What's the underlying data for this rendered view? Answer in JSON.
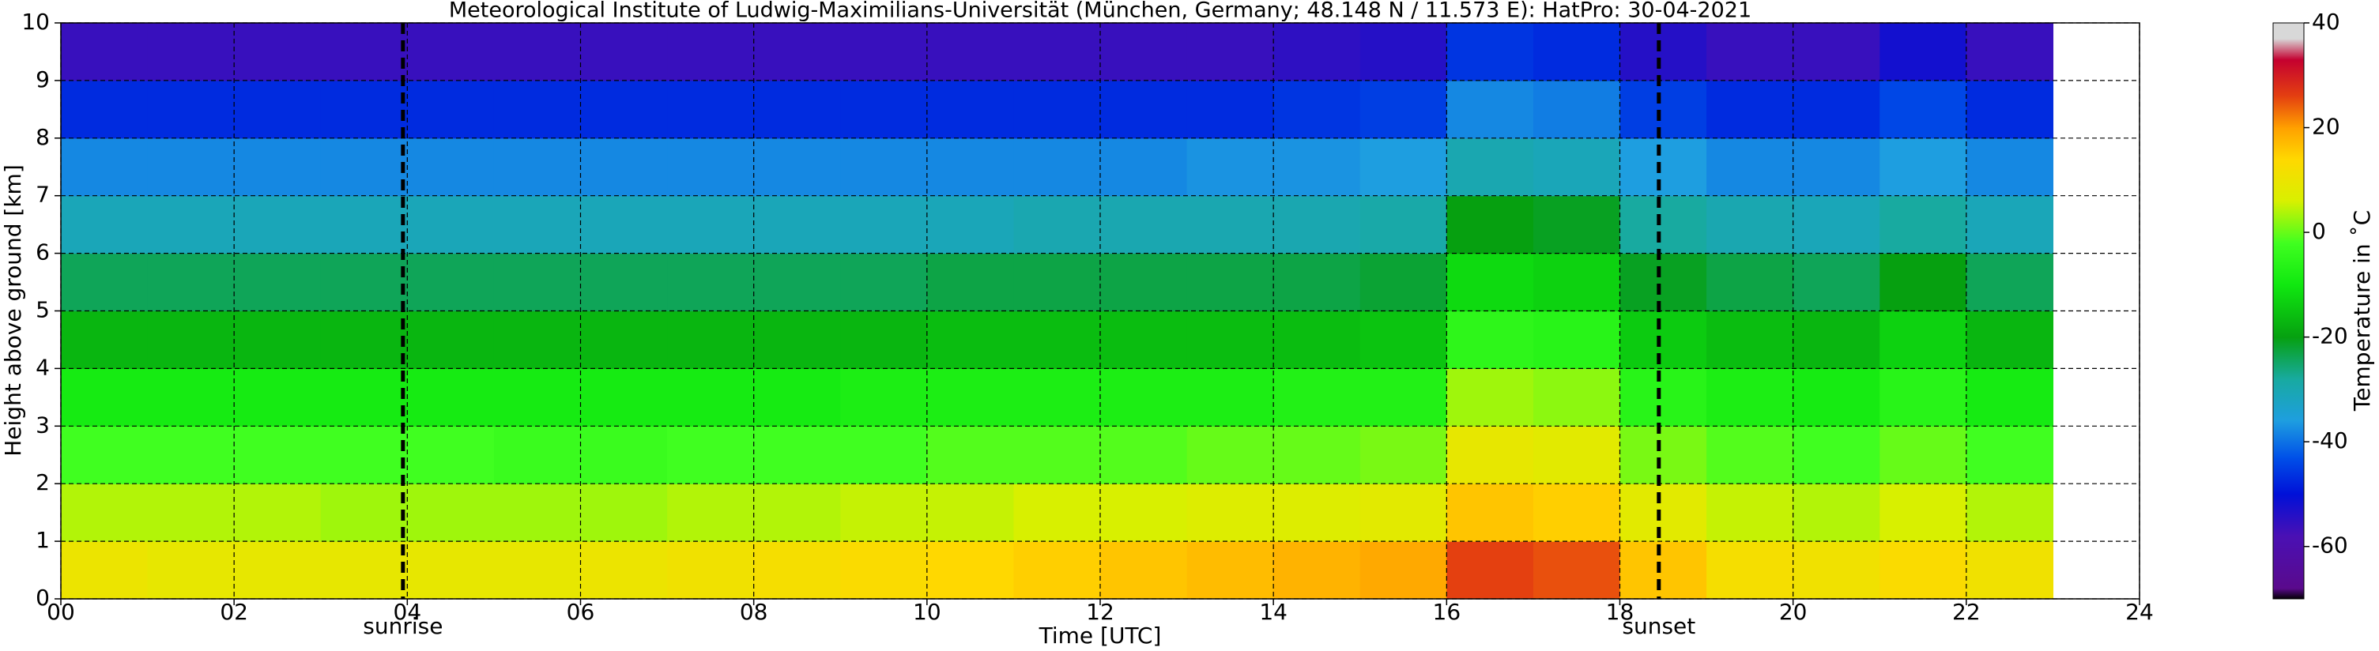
{
  "chart_data": {
    "type": "heatmap",
    "title": "Meteorological Institute of Ludwig-Maximilians-Universität (München, Germany; 48.148 N / 11.573 E):    HatPro: 30-04-2021",
    "xlabel": "Time [UTC]",
    "ylabel": "Height above ground [km]",
    "colorbar_label": "Temperature in ˚C",
    "xlim": [
      0,
      24
    ],
    "ylim": [
      0,
      10
    ],
    "xticks": [
      {
        "value": 0,
        "label": "00"
      },
      {
        "value": 2,
        "label": "02"
      },
      {
        "value": 4,
        "label": "04"
      },
      {
        "value": 6,
        "label": "06"
      },
      {
        "value": 8,
        "label": "08"
      },
      10,
      12,
      14,
      16,
      18,
      20,
      22,
      24
    ],
    "yticks": [
      0,
      1,
      2,
      3,
      4,
      5,
      6,
      7,
      8,
      9,
      10
    ],
    "grid": true,
    "markers": [
      {
        "x": 3.95,
        "label": "sunrise"
      },
      {
        "x": 18.45,
        "label": "sunset"
      }
    ],
    "xbins": [
      0,
      1,
      2,
      3,
      4,
      5,
      6,
      7,
      8,
      9,
      10,
      11,
      12,
      13,
      14,
      15,
      16,
      17,
      18,
      19,
      20,
      21,
      22,
      23
    ],
    "ybins": [
      0,
      1,
      2,
      3,
      4,
      5,
      6,
      7,
      8,
      9,
      10
    ],
    "z": [
      [
        10,
        9,
        9,
        9,
        9,
        9,
        10,
        11,
        12,
        13,
        14,
        15,
        16,
        17,
        18,
        19,
        26,
        25,
        16,
        12,
        11,
        13,
        11
      ],
      [
        4,
        4,
        4,
        3,
        3,
        3,
        3,
        4,
        4,
        5,
        5,
        6,
        6,
        7,
        7,
        8,
        16,
        15,
        8,
        5,
        4,
        6,
        4
      ],
      [
        -2,
        -2,
        -2,
        -2,
        -2,
        -3,
        -3,
        -2,
        -2,
        -2,
        -1,
        -1,
        -1,
        0,
        0,
        1,
        9,
        8,
        1,
        -1,
        -2,
        0,
        -2
      ],
      [
        -9,
        -9,
        -9,
        -9,
        -9,
        -9,
        -9,
        -9,
        -9,
        -8,
        -8,
        -8,
        -8,
        -8,
        -7,
        -7,
        3,
        2,
        -6,
        -8,
        -9,
        -6,
        -9
      ],
      [
        -17,
        -17,
        -17,
        -17,
        -17,
        -17,
        -17,
        -17,
        -17,
        -17,
        -16,
        -16,
        -16,
        -16,
        -16,
        -15,
        -5,
        -6,
        -14,
        -16,
        -17,
        -13,
        -17
      ],
      [
        -24,
        -24,
        -24,
        -24,
        -24,
        -24,
        -24,
        -24,
        -24,
        -24,
        -23,
        -23,
        -23,
        -23,
        -23,
        -22,
        -12,
        -13,
        -21,
        -23,
        -24,
        -20,
        -24
      ],
      [
        -31,
        -31,
        -31,
        -31,
        -31,
        -31,
        -31,
        -31,
        -31,
        -31,
        -31,
        -30,
        -30,
        -30,
        -30,
        -29,
        -20,
        -21,
        -28,
        -30,
        -31,
        -28,
        -31
      ],
      [
        -38,
        -38,
        -38,
        -38,
        -38,
        -38,
        -38,
        -38,
        -38,
        -38,
        -38,
        -38,
        -38,
        -37,
        -37,
        -36,
        -30,
        -31,
        -36,
        -38,
        -38,
        -36,
        -38
      ],
      [
        -47,
        -47,
        -47,
        -47,
        -47,
        -47,
        -47,
        -47,
        -47,
        -47,
        -47,
        -47,
        -47,
        -47,
        -46,
        -45,
        -38,
        -39,
        -45,
        -47,
        -47,
        -44,
        -47
      ],
      [
        -56,
        -56,
        -56,
        -56,
        -56,
        -56,
        -56,
        -56,
        -56,
        -56,
        -56,
        -56,
        -56,
        -56,
        -55,
        -54,
        -46,
        -47,
        -54,
        -56,
        -56,
        -52,
        -56
      ]
    ],
    "zlim": [
      -70,
      40
    ],
    "zticks": [
      -60,
      -40,
      -20,
      0,
      20,
      40
    ],
    "colorscale": [
      {
        "value": -70,
        "color": "#000000"
      },
      {
        "value": -68,
        "color": "#5a0a8c"
      },
      {
        "value": -58,
        "color": "#4a10b4"
      },
      {
        "value": -50,
        "color": "#0010d8"
      },
      {
        "value": -43,
        "color": "#0050e8"
      },
      {
        "value": -36,
        "color": "#1e9ee0"
      },
      {
        "value": -28,
        "color": "#18aaa0"
      },
      {
        "value": -20,
        "color": "#06a010"
      },
      {
        "value": -10,
        "color": "#10e810"
      },
      {
        "value": -2,
        "color": "#40ff20"
      },
      {
        "value": 6,
        "color": "#d8f000"
      },
      {
        "value": 14,
        "color": "#ffd800"
      },
      {
        "value": 20,
        "color": "#ffa000"
      },
      {
        "value": 26,
        "color": "#e44010"
      },
      {
        "value": 33,
        "color": "#c40030"
      },
      {
        "value": 37,
        "color": "#d8d8d8"
      },
      {
        "value": 40,
        "color": "#d8d8d8"
      }
    ]
  }
}
